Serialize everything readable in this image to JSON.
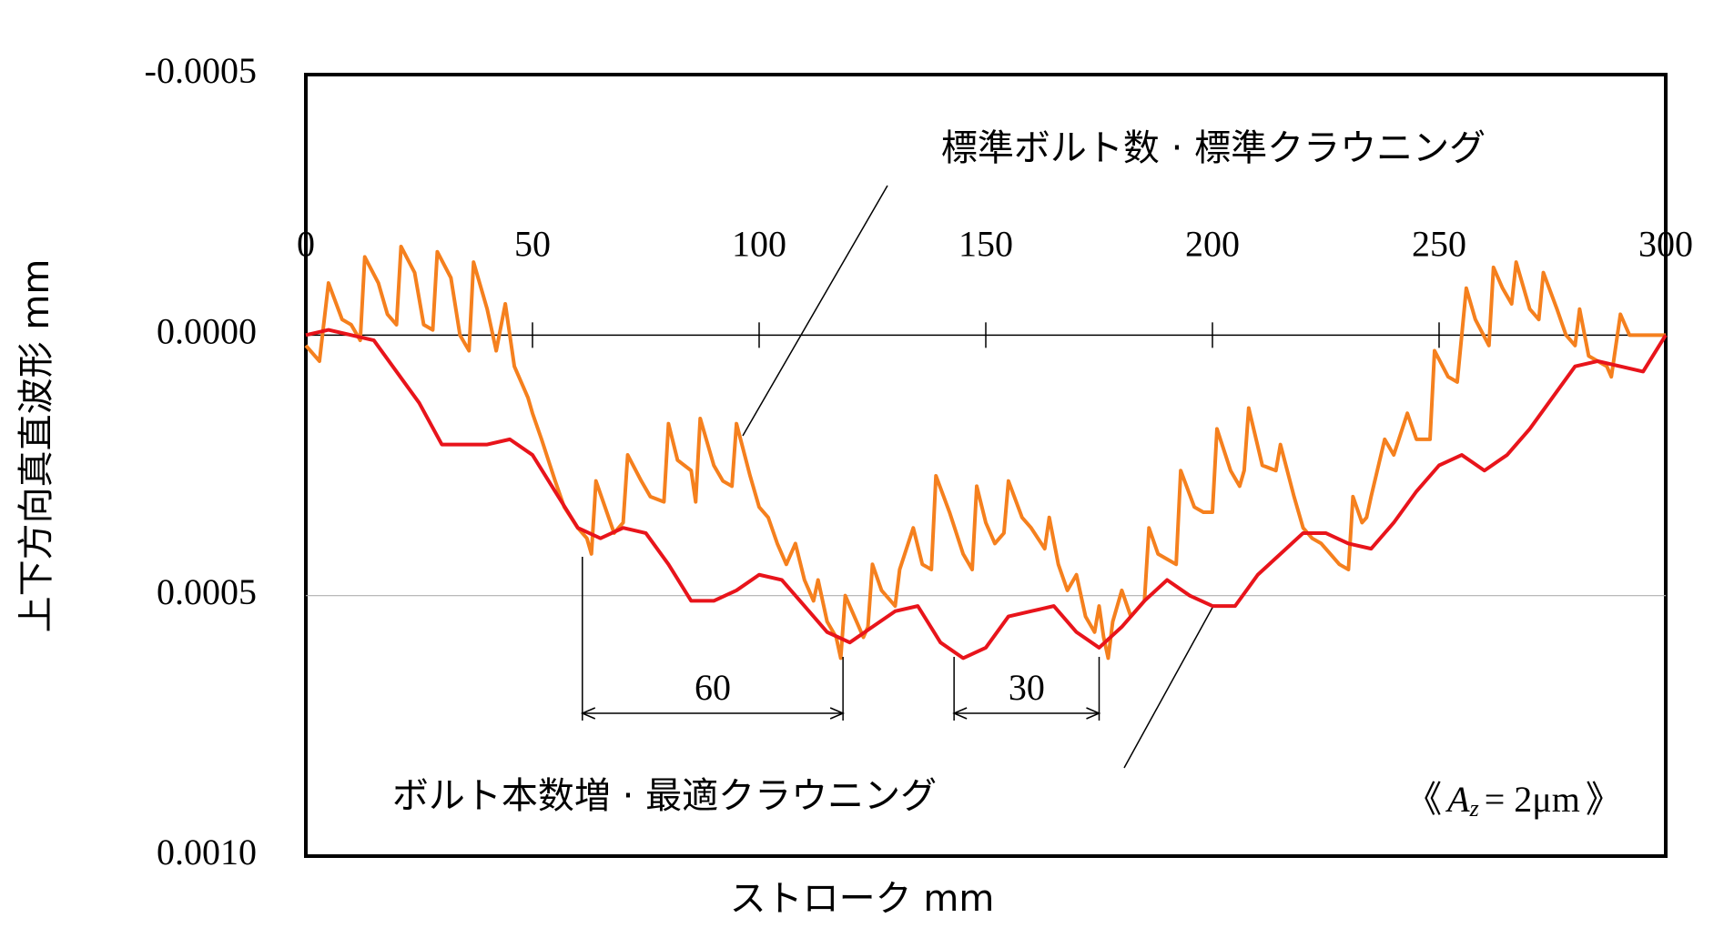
{
  "chart_data": {
    "type": "line",
    "x_label": "ストローク mm",
    "y_label": "上下方向真直波形 mm",
    "xlim": [
      0,
      300
    ],
    "xticks": [
      0,
      50,
      100,
      150,
      200,
      250,
      300
    ],
    "ylim": [
      -0.0005,
      0.001
    ],
    "y_inverted": true,
    "yticks": [
      {
        "value": -0.0005,
        "label": "-0.0005"
      },
      {
        "value": 0,
        "label": "0.0000"
      },
      {
        "value": 0.0005,
        "label": "0.0005"
      },
      {
        "value": 0.001,
        "label": "0.0010"
      }
    ],
    "grid": true,
    "series": [
      {
        "name": "標準ボルト数 · 標準クラウニング",
        "color": "#f5801e",
        "x": [
          0,
          3,
          5,
          8,
          10,
          12,
          13,
          16,
          18,
          20,
          21,
          24,
          26,
          28,
          29,
          32,
          34,
          36,
          37,
          40,
          42,
          44,
          46,
          48,
          49,
          50,
          52,
          55,
          57,
          60,
          62,
          63,
          64,
          66,
          68,
          70,
          71,
          74,
          76,
          79,
          80,
          82,
          85,
          86,
          87,
          90,
          92,
          94,
          95,
          98,
          100,
          102,
          104,
          106,
          108,
          110,
          112,
          113,
          115,
          117,
          118,
          119,
          121,
          123,
          124,
          125,
          127,
          130,
          131,
          134,
          136,
          138,
          139,
          142,
          145,
          147,
          148,
          150,
          152,
          154,
          155,
          158,
          160,
          163,
          164,
          166,
          168,
          170,
          172,
          174,
          175,
          176,
          177,
          178,
          180,
          182,
          185,
          186,
          188,
          190,
          192,
          193,
          196,
          198,
          200,
          201,
          204,
          206,
          207,
          208,
          211,
          214,
          215,
          218,
          220,
          222,
          224,
          226,
          228,
          230,
          231,
          233,
          234,
          235,
          238,
          240,
          243,
          245,
          248,
          249,
          252,
          254,
          256,
          258,
          261,
          262,
          264,
          266,
          267,
          270,
          272,
          273,
          276,
          278,
          280,
          281,
          283,
          285,
          287,
          288,
          290,
          291,
          292,
          300
        ],
        "values": [
          2e-05,
          5e-05,
          -0.0001,
          -3e-05,
          -2e-05,
          1e-05,
          -0.00015,
          -0.0001,
          -4e-05,
          -2e-05,
          -0.00017,
          -0.00012,
          -2e-05,
          -1e-05,
          -0.00016,
          -0.00011,
          0,
          3e-05,
          -0.00014,
          -5e-05,
          3e-05,
          -6e-05,
          6e-05,
          0.0001,
          0.00012,
          0.00015,
          0.0002,
          0.00028,
          0.00033,
          0.00037,
          0.00039,
          0.00042,
          0.00028,
          0.00033,
          0.00038,
          0.00036,
          0.00023,
          0.00028,
          0.00031,
          0.00032,
          0.00017,
          0.00024,
          0.00026,
          0.00032,
          0.00016,
          0.00025,
          0.00028,
          0.00029,
          0.00017,
          0.00027,
          0.00033,
          0.00035,
          0.0004,
          0.00044,
          0.0004,
          0.00047,
          0.00051,
          0.00047,
          0.00055,
          0.00058,
          0.00062,
          0.0005,
          0.00054,
          0.00058,
          0.00056,
          0.00044,
          0.00049,
          0.00052,
          0.00045,
          0.00037,
          0.00044,
          0.00045,
          0.00027,
          0.00034,
          0.00042,
          0.00045,
          0.00029,
          0.00036,
          0.0004,
          0.00038,
          0.00028,
          0.00035,
          0.00037,
          0.00041,
          0.00035,
          0.00044,
          0.00049,
          0.00046,
          0.00054,
          0.00057,
          0.00052,
          0.00058,
          0.00062,
          0.00055,
          0.00049,
          0.00054,
          0.00051,
          0.00037,
          0.00042,
          0.00043,
          0.00044,
          0.00026,
          0.00033,
          0.00034,
          0.00034,
          0.00018,
          0.00026,
          0.00029,
          0.00026,
          0.00014,
          0.00025,
          0.00026,
          0.00021,
          0.00031,
          0.00037,
          0.00039,
          0.0004,
          0.00042,
          0.00044,
          0.00045,
          0.00031,
          0.00036,
          0.00035,
          0.00031,
          0.0002,
          0.00023,
          0.00015,
          0.0002,
          0.0002,
          3e-05,
          8e-05,
          9e-05,
          -9e-05,
          -3e-05,
          2e-05,
          -0.00013,
          -9e-05,
          -6e-05,
          -0.00014,
          -5e-05,
          -3e-05,
          -0.00012,
          -5e-05,
          0,
          2e-05,
          -5e-05,
          4e-05,
          5e-05,
          6e-05,
          8e-05,
          -4e-05,
          -2e-05,
          0,
          0
        ]
      },
      {
        "name": "ボルト本数増 · 最適クラウニング",
        "color": "#e8141b",
        "x": [
          0,
          5,
          10,
          15,
          20,
          25,
          30,
          35,
          40,
          45,
          50,
          55,
          60,
          65,
          70,
          75,
          80,
          85,
          90,
          95,
          100,
          105,
          110,
          115,
          120,
          125,
          130,
          135,
          140,
          145,
          150,
          155,
          160,
          165,
          170,
          175,
          180,
          185,
          190,
          195,
          200,
          205,
          210,
          215,
          220,
          225,
          230,
          235,
          240,
          245,
          250,
          255,
          260,
          265,
          270,
          275,
          280,
          285,
          290,
          295,
          300
        ],
        "values": [
          0,
          -1e-05,
          0,
          1e-05,
          7e-05,
          0.00013,
          0.00021,
          0.00021,
          0.00021,
          0.0002,
          0.00023,
          0.0003,
          0.00037,
          0.00039,
          0.00037,
          0.00038,
          0.00044,
          0.00051,
          0.00051,
          0.00049,
          0.00046,
          0.00047,
          0.00052,
          0.00057,
          0.00059,
          0.00056,
          0.00053,
          0.00052,
          0.00059,
          0.00062,
          0.0006,
          0.00054,
          0.00053,
          0.00052,
          0.00057,
          0.0006,
          0.00056,
          0.00051,
          0.00047,
          0.0005,
          0.00052,
          0.00052,
          0.00046,
          0.00042,
          0.00038,
          0.00038,
          0.0004,
          0.00041,
          0.00036,
          0.0003,
          0.00025,
          0.00023,
          0.00026,
          0.00023,
          0.00018,
          0.00012,
          6e-05,
          5e-05,
          6e-05,
          7e-05,
          0
        ]
      }
    ],
    "dimensions": [
      60,
      30
    ],
    "az_label": {
      "open": "《",
      "symbol": "A",
      "subscript": "z",
      "rest": "= 2μm",
      "close": "》"
    }
  }
}
